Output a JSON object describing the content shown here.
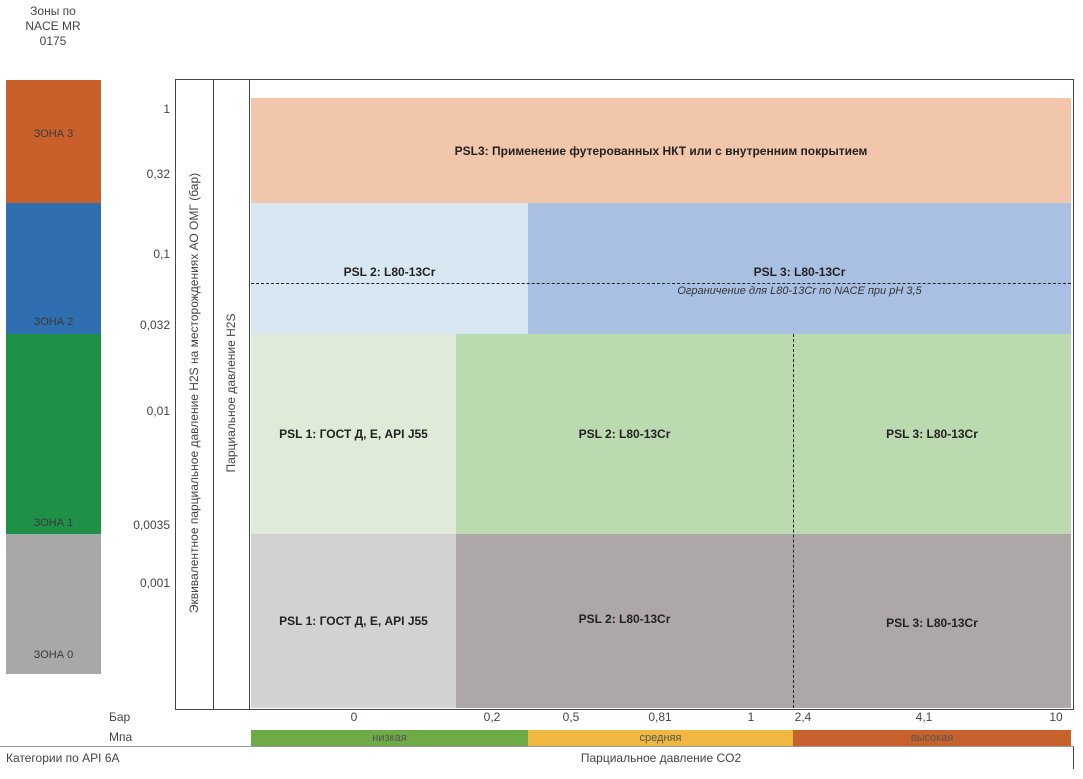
{
  "zones_header": "Зоны по\nNACE MR\n0175",
  "zones": [
    {
      "label": "ЗОНА 3",
      "color": "#c9602c"
    },
    {
      "label": "ЗОНА 2",
      "color": "#2f6fb0"
    },
    {
      "label": "ЗОНА 1",
      "color": "#1e9048"
    },
    {
      "label": "ЗОНА 0",
      "color": "#a8a8a8"
    }
  ],
  "y_ticks": [
    "1",
    "0,32",
    "0,1",
    "0,032",
    "0,01",
    "0,0035",
    "0,001"
  ],
  "y_axis_label_1": "Эквивалентное парциальное давление H2S на месторождениях АО ОМГ (бар)",
  "y_axis_label_2": "Парциальное давление H2S",
  "regions": {
    "psl3_top": "PSL3: Применение футерованных НКТ или с внутренним покрытием",
    "z2_left": "PSL 2: L80-13Cr",
    "z2_right": "PSL 3: L80-13Cr",
    "z2_note": "Ограничение для L80-13Cr по NACE при pH 3,5",
    "z1_left": "PSL 1: ГОСТ Д, Е, API J55",
    "z1_mid": "PSL 2: L80-13Cr",
    "z1_right": "PSL 3: L80-13Cr",
    "z0_left": "PSL 1: ГОСТ Д, Е, API J55",
    "z0_mid": "PSL 2: L80-13Cr",
    "z0_right": "PSL 3: L80-13Cr"
  },
  "colors": {
    "psl3_top": "#f2c6aa",
    "z2_left": "#d8e8f3",
    "z2_right": "#a9c0e2",
    "z1_left": "#e0ead9",
    "z1_mid": "#bcdab0",
    "z1_right": "#bcdab0",
    "z0_left": "#d2d2d2",
    "z0_mid": "#aea7a7",
    "z0_right": "#aea7a7",
    "cat_low": "#6eaa45",
    "cat_mid": "#f1b841",
    "cat_high": "#c7622d"
  },
  "x_row_bar_label": "Бар",
  "x_row_mpa_label": "Мпа",
  "x_ticks": [
    "0",
    "0,2",
    "0,5",
    "0,81",
    "1",
    "2,4",
    "4,1",
    "10"
  ],
  "categories": [
    "низкая",
    "средняя",
    "высокая"
  ],
  "api_label": "Категории по API 6A",
  "x_axis_title": "Парциальное давление CO2"
}
